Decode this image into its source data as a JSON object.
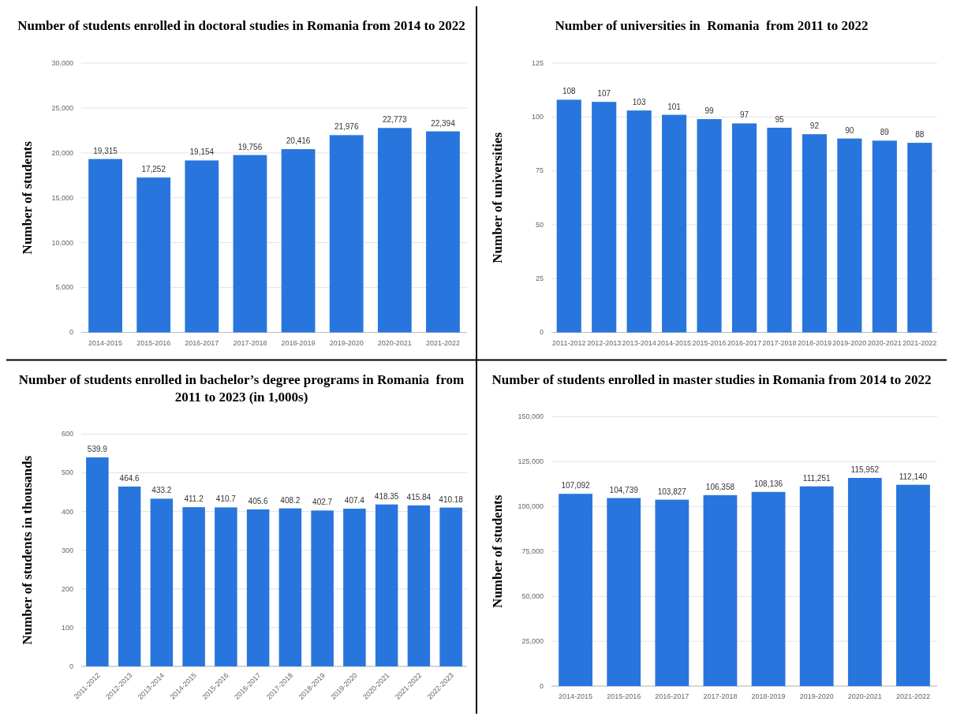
{
  "chart_data": [
    {
      "type": "bar",
      "title": "Number of students enrolled in doctoral studies in Romania from 2014 to 2022",
      "ylabel": "Number of students",
      "categories": [
        "2014-2015",
        "2015-2016",
        "2016-2017",
        "2017-2018",
        "2018-2019",
        "2019-2020",
        "2020-2021",
        "2021-2022"
      ],
      "values": [
        19315,
        17252,
        19154,
        19756,
        20416,
        21976,
        22773,
        22394
      ],
      "value_labels": [
        "19,315",
        "17,252",
        "19,154",
        "19,756",
        "20,416",
        "21,976",
        "22,773",
        "22,394"
      ],
      "color": "#2876dd",
      "ylim": [
        0,
        30000
      ],
      "yticks": [
        0,
        {
          "value": 5000,
          "label": "5,000"
        },
        {
          "value": 10000,
          "label": "10,000"
        },
        {
          "value": 15000,
          "label": "15,000"
        },
        {
          "value": 20000,
          "label": "20,000"
        },
        {
          "value": 25000,
          "label": "25,000"
        },
        {
          "value": 30000,
          "label": "30,000"
        }
      ],
      "grid": "y"
    },
    {
      "type": "bar",
      "title": "Number of universities in  Romania  from 2011 to 2022",
      "ylabel": "Number of universities",
      "categories": [
        "2011-2012",
        "2012-2013",
        "2013-2014",
        "2014-2015",
        "2015-2016",
        "2016-2017",
        "2017-2018",
        "2018-2019",
        "2019-2020",
        "2020-2021",
        "2021-2022"
      ],
      "values": [
        108,
        107,
        103,
        101,
        99,
        97,
        95,
        92,
        90,
        89,
        88
      ],
      "color": "#2876dd",
      "ylim": [
        0,
        125
      ],
      "yticks": [
        0,
        25,
        50,
        75,
        100,
        125
      ],
      "grid": "y",
      "data_labels": true
    },
    {
      "type": "bar",
      "title": "Number of students enrolled in bachelor’s degree programs in Romania  from 2011 to 2023 (in 1,000s)",
      "ylabel": "Number of students in thousands",
      "categories": [
        "2011-2012",
        "2012-2013",
        "2013-2014",
        "2014-2015",
        "2015-2016",
        "2016-2017",
        "2017-2018",
        "2018-2019",
        "2019-2020",
        "2020-2021",
        "2021-2022",
        "2022-2023"
      ],
      "values": [
        539.9,
        464.6,
        433.2,
        411.2,
        410.7,
        405.6,
        408.2,
        402.7,
        407.4,
        418.35,
        415.84,
        410.18
      ],
      "color": "#2876dd",
      "ylim": [
        0,
        600
      ],
      "yticks": [
        0,
        100,
        200,
        300,
        400,
        500,
        600
      ],
      "grid": "y",
      "data_labels": true
    },
    {
      "type": "bar",
      "title": "Number of students enrolled in master studies in Romania from 2014 to 2022",
      "ylabel": "Number of students",
      "categories": [
        "2014-2015",
        "2015-2016",
        "2016-2017",
        "2017-2018",
        "2018-2019",
        "2019-2020",
        "2020-2021",
        "2021-2022"
      ],
      "values": [
        107092,
        104739,
        103827,
        106358,
        108136,
        111251,
        115952,
        112140
      ],
      "value_labels": [
        "107,092",
        "104,739",
        "103,827",
        "106,358",
        "108,136",
        "111,251",
        "115,952",
        "112,140"
      ],
      "color": "#2876dd",
      "ylim": [
        0,
        150000
      ],
      "yticks": [
        0,
        {
          "value": 25000,
          "label": "25,000"
        },
        {
          "value": 50000,
          "label": "50,000"
        },
        {
          "value": 75000,
          "label": "75,000"
        },
        {
          "value": 100000,
          "label": "100,000"
        },
        {
          "value": 125000,
          "label": "125,000"
        },
        {
          "value": 150000,
          "label": "150,000"
        }
      ],
      "grid": "y"
    }
  ]
}
